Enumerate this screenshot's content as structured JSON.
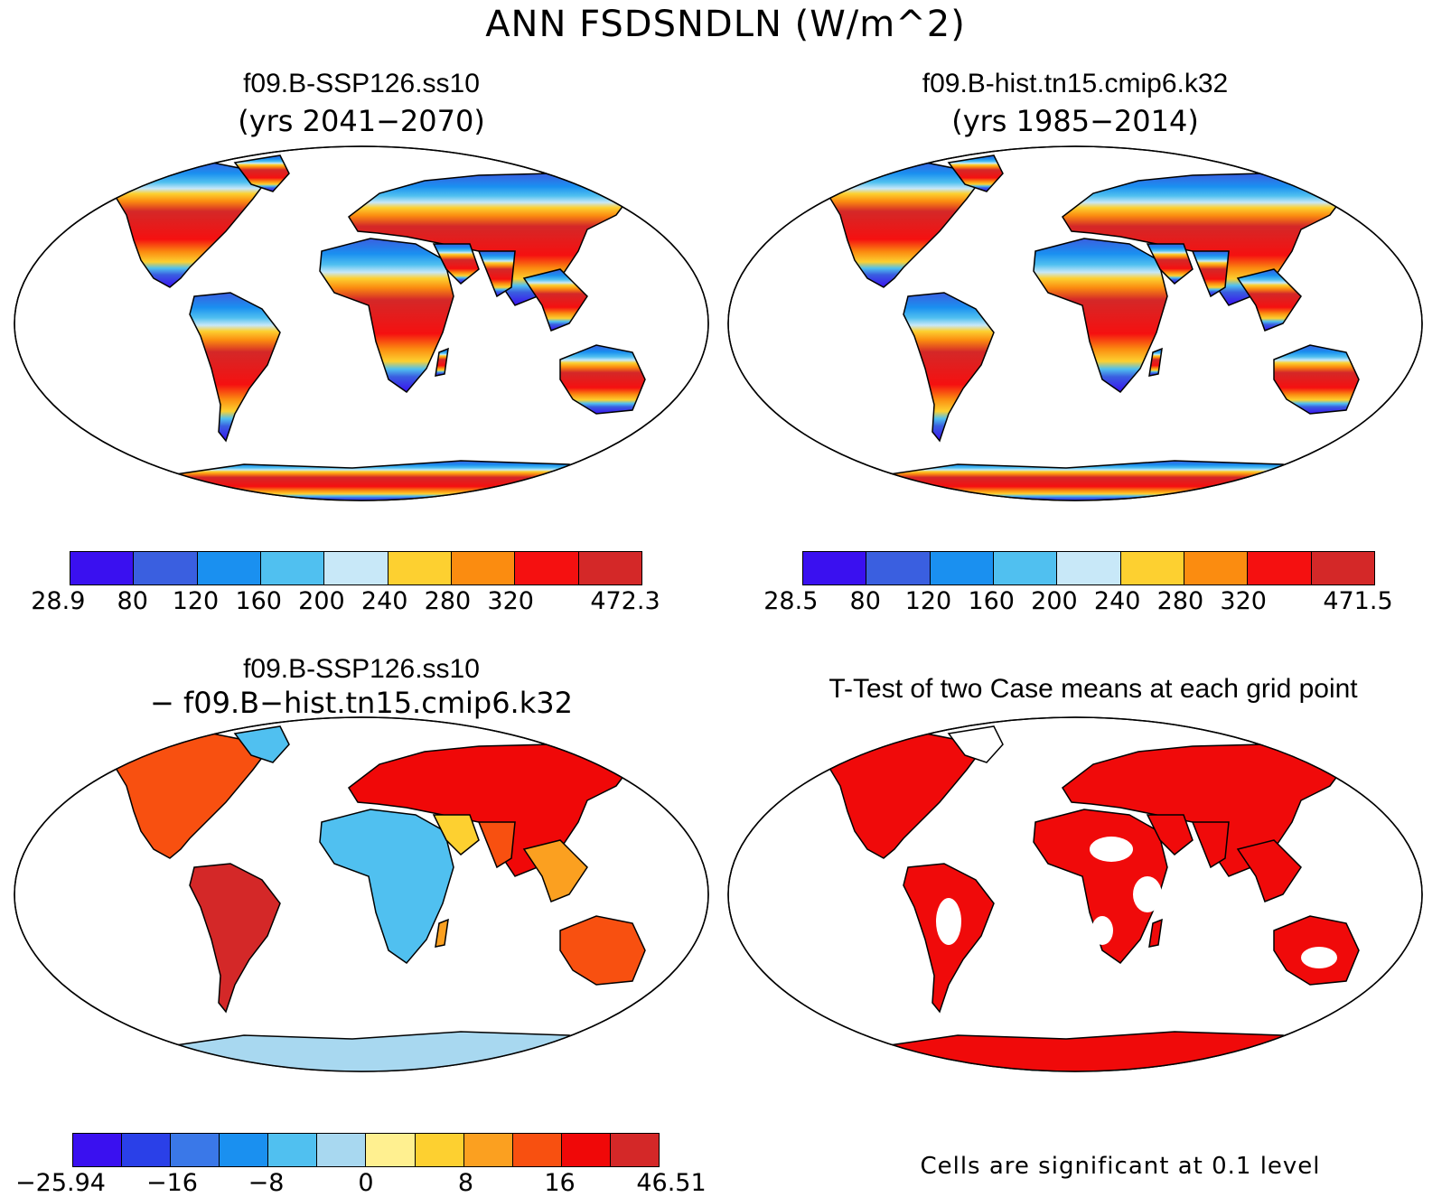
{
  "title": "ANN FSDSNDLN (W/m^2)",
  "panels": {
    "future": {
      "case": "f09.B-SSP126.ss10",
      "years": "(yrs 2041−2070)",
      "colorbar": {
        "colors": [
          "#3a10f0",
          "#3a5fe0",
          "#1a90f0",
          "#50c0f0",
          "#c8e8f8",
          "#fdd030",
          "#fb8c10",
          "#f51010",
          "#d42828"
        ],
        "labels": [
          "28.9",
          "80",
          "120",
          "160",
          "200",
          "240",
          "280",
          "320",
          "472.3"
        ]
      }
    },
    "historical": {
      "case": "f09.B-hist.tn15.cmip6.k32",
      "years": "(yrs 1985−2014)",
      "colorbar": {
        "colors": [
          "#3a10f0",
          "#3a5fe0",
          "#1a90f0",
          "#50c0f0",
          "#c8e8f8",
          "#fdd030",
          "#fb8c10",
          "#f51010",
          "#d42828"
        ],
        "labels": [
          "28.5",
          "80",
          "120",
          "160",
          "200",
          "240",
          "280",
          "320",
          "471.5"
        ]
      }
    },
    "difference": {
      "case": "f09.B-SSP126.ss10",
      "minus_case": "− f09.B−hist.tn15.cmip6.k32",
      "colorbar": {
        "colors": [
          "#3a10f0",
          "#2a40e8",
          "#3a78e8",
          "#1a90f0",
          "#50c0f0",
          "#a8d8f0",
          "#fff090",
          "#fdd030",
          "#fba020",
          "#f85010",
          "#f00808",
          "#d42828"
        ],
        "labels": [
          "−25.94",
          "−16",
          "−8",
          "0",
          "8",
          "16",
          "46.51"
        ]
      }
    },
    "ttest": {
      "title": "T-Test of two Case means at each grid point",
      "note": "Cells are significant at 0.1 level",
      "sig_color": "#f00a0a"
    }
  }
}
